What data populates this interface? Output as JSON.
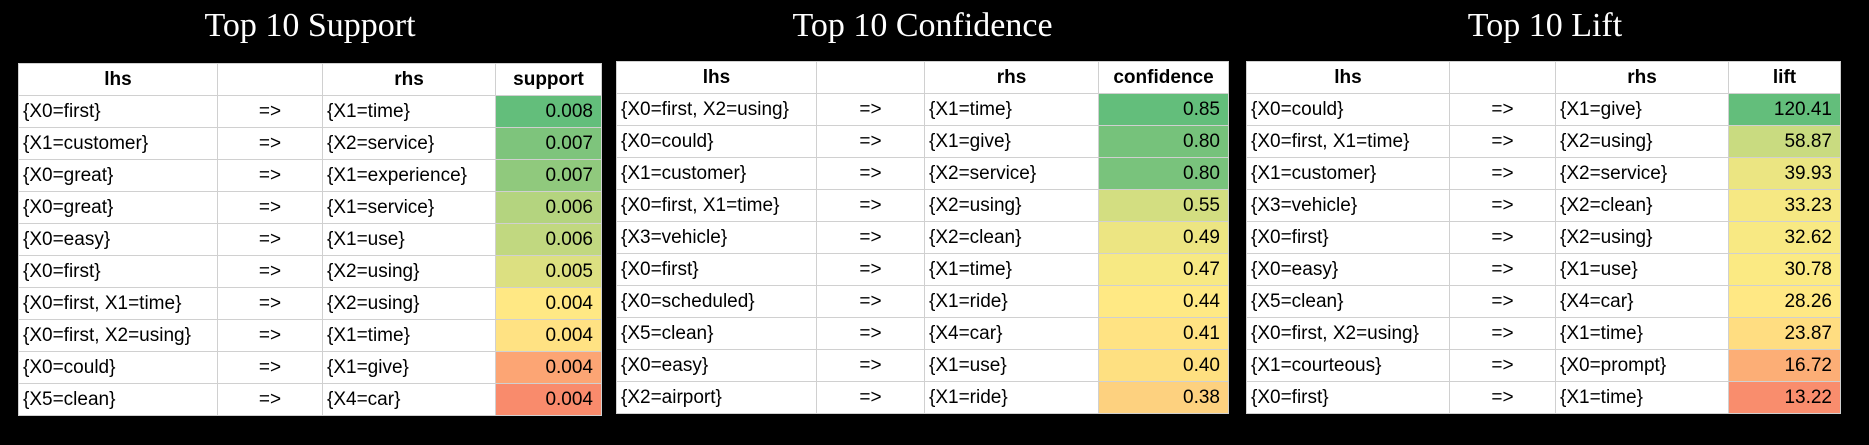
{
  "colors": {
    "background": "#000000",
    "scale_high": "#63be7b",
    "scale_mid": "#ffeb84",
    "scale_low": "#f8696b"
  },
  "chart_data": [
    {
      "type": "table",
      "title": "Top 10 Support",
      "columns": [
        "lhs",
        "",
        "rhs",
        "support"
      ],
      "rows": [
        {
          "lhs": "{X0=first}",
          "arrow": "=>",
          "rhs": "{X1=time}",
          "value": "0.008",
          "color": "#63be7b"
        },
        {
          "lhs": "{X1=customer}",
          "arrow": "=>",
          "rhs": "{X2=service}",
          "value": "0.007",
          "color": "#7ec47c"
        },
        {
          "lhs": "{X0=great}",
          "arrow": "=>",
          "rhs": "{X1=experience}",
          "value": "0.007",
          "color": "#90c97d"
        },
        {
          "lhs": "{X0=great}",
          "arrow": "=>",
          "rhs": "{X1=service}",
          "value": "0.006",
          "color": "#b4d47f"
        },
        {
          "lhs": "{X0=easy}",
          "arrow": "=>",
          "rhs": "{X1=use}",
          "value": "0.006",
          "color": "#c1d880"
        },
        {
          "lhs": "{X0=first}",
          "arrow": "=>",
          "rhs": "{X2=using}",
          "value": "0.005",
          "color": "#dce081"
        },
        {
          "lhs": "{X0=first, X1=time}",
          "arrow": "=>",
          "rhs": "{X2=using}",
          "value": "0.004",
          "color": "#ffe884"
        },
        {
          "lhs": "{X0=first, X2=using}",
          "arrow": "=>",
          "rhs": "{X1=time}",
          "value": "0.004",
          "color": "#ffe283"
        },
        {
          "lhs": "{X0=could}",
          "arrow": "=>",
          "rhs": "{X1=give}",
          "value": "0.004",
          "color": "#fca574"
        },
        {
          "lhs": "{X5=clean}",
          "arrow": "=>",
          "rhs": "{X4=car}",
          "value": "0.004",
          "color": "#f98b6c"
        }
      ]
    },
    {
      "type": "table",
      "title": "Top 10 Confidence",
      "columns": [
        "lhs",
        "",
        "rhs",
        "confidence"
      ],
      "rows": [
        {
          "lhs": "{X0=first, X2=using}",
          "arrow": "=>",
          "rhs": "{X1=time}",
          "value": "0.85",
          "color": "#63be7b"
        },
        {
          "lhs": "{X0=could}",
          "arrow": "=>",
          "rhs": "{X1=give}",
          "value": "0.80",
          "color": "#76c27b"
        },
        {
          "lhs": "{X1=customer}",
          "arrow": "=>",
          "rhs": "{X2=service}",
          "value": "0.80",
          "color": "#79c37c"
        },
        {
          "lhs": "{X0=first, X1=time}",
          "arrow": "=>",
          "rhs": "{X2=using}",
          "value": "0.55",
          "color": "#d3de81"
        },
        {
          "lhs": "{X3=vehicle}",
          "arrow": "=>",
          "rhs": "{X2=clean}",
          "value": "0.49",
          "color": "#ece582"
        },
        {
          "lhs": "{X0=first}",
          "arrow": "=>",
          "rhs": "{X1=time}",
          "value": "0.47",
          "color": "#f7e983"
        },
        {
          "lhs": "{X0=scheduled}",
          "arrow": "=>",
          "rhs": "{X1=ride}",
          "value": "0.44",
          "color": "#ffe984"
        },
        {
          "lhs": "{X5=clean}",
          "arrow": "=>",
          "rhs": "{X4=car}",
          "value": "0.41",
          "color": "#ffe383"
        },
        {
          "lhs": "{X0=easy}",
          "arrow": "=>",
          "rhs": "{X1=use}",
          "value": "0.40",
          "color": "#fee081"
        },
        {
          "lhs": "{X2=airport}",
          "arrow": "=>",
          "rhs": "{X1=ride}",
          "value": "0.38",
          "color": "#fdd17f"
        }
      ]
    },
    {
      "type": "table",
      "title": "Top 10 Lift",
      "columns": [
        "lhs",
        "",
        "rhs",
        "lift"
      ],
      "rows": [
        {
          "lhs": "{X0=could}",
          "arrow": "=>",
          "rhs": "{X1=give}",
          "value": "120.41",
          "color": "#63be7b"
        },
        {
          "lhs": "{X0=first, X1=time}",
          "arrow": "=>",
          "rhs": "{X2=using}",
          "value": "58.87",
          "color": "#c9db80"
        },
        {
          "lhs": "{X1=customer}",
          "arrow": "=>",
          "rhs": "{X2=service}",
          "value": "39.93",
          "color": "#ebe582"
        },
        {
          "lhs": "{X3=vehicle}",
          "arrow": "=>",
          "rhs": "{X2=clean}",
          "value": "33.23",
          "color": "#f6e883"
        },
        {
          "lhs": "{X0=first}",
          "arrow": "=>",
          "rhs": "{X2=using}",
          "value": "32.62",
          "color": "#f8e983"
        },
        {
          "lhs": "{X0=easy}",
          "arrow": "=>",
          "rhs": "{X1=use}",
          "value": "30.78",
          "color": "#fbea83"
        },
        {
          "lhs": "{X5=clean}",
          "arrow": "=>",
          "rhs": "{X4=car}",
          "value": "28.26",
          "color": "#ffe884"
        },
        {
          "lhs": "{X0=first, X2=using}",
          "arrow": "=>",
          "rhs": "{X1=time}",
          "value": "23.87",
          "color": "#ffdd81"
        },
        {
          "lhs": "{X1=courteous}",
          "arrow": "=>",
          "rhs": "{X0=prompt}",
          "value": "16.72",
          "color": "#fcae76"
        },
        {
          "lhs": "{X0=first}",
          "arrow": "=>",
          "rhs": "{X1=time}",
          "value": "13.22",
          "color": "#f98d6d"
        }
      ]
    }
  ]
}
